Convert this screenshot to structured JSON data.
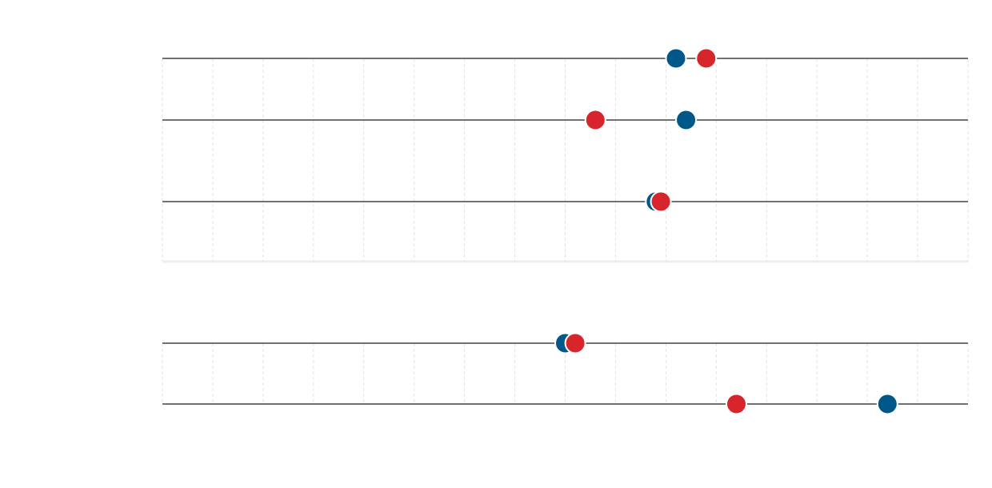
{
  "chart_data": {
    "type": "dot",
    "categories": [
      null,
      null,
      null,
      null,
      null
    ],
    "series": [
      {
        "color": "#00578a",
        "values": [
          10.2,
          10.4,
          9.8,
          8.0,
          14.4
        ]
      },
      {
        "color": "#d7262b",
        "values": [
          10.8,
          8.6,
          9.9,
          8.2,
          11.4
        ]
      }
    ],
    "xlim": [
      0,
      16
    ],
    "xticks": [
      0,
      1,
      2,
      3,
      4,
      5,
      6,
      7,
      8,
      9,
      10,
      11,
      12,
      13,
      14,
      15,
      16
    ],
    "grid": true
  }
}
